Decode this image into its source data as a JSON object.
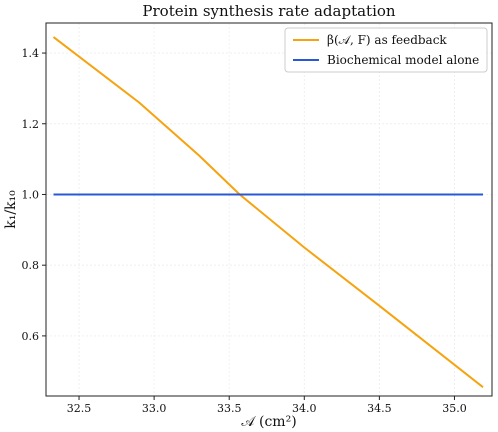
{
  "chart_data": {
    "type": "line",
    "title": "Protein synthesis rate adaptation",
    "xlabel": "𝒜 (cm²)",
    "ylabel": "k₁/k₁₀",
    "xlim": [
      32.28,
      35.25
    ],
    "ylim": [
      0.43,
      1.485
    ],
    "xticks": [
      32.5,
      33.0,
      33.5,
      34.0,
      34.5,
      35.0
    ],
    "xtick_labels": [
      "32.5",
      "33.0",
      "33.5",
      "34.0",
      "34.5",
      "35.0"
    ],
    "yticks": [
      0.6,
      0.8,
      1.0,
      1.2,
      1.4
    ],
    "ytick_labels": [
      "0.6",
      "0.8",
      "1.0",
      "1.2",
      "1.4"
    ],
    "grid": true,
    "legend_position": "top-right",
    "series": [
      {
        "name": "β(𝒜, F) as feedback",
        "color": "#f5a30f",
        "x": [
          32.33,
          32.9,
          33.3,
          33.57,
          34.0,
          34.5,
          35.19
        ],
        "y": [
          1.445,
          1.26,
          1.11,
          1.0,
          0.85,
          0.685,
          0.455
        ]
      },
      {
        "name": "Biochemical model alone",
        "color": "#2958d6",
        "x": [
          32.33,
          35.19
        ],
        "y": [
          1.0,
          1.0
        ]
      }
    ]
  }
}
